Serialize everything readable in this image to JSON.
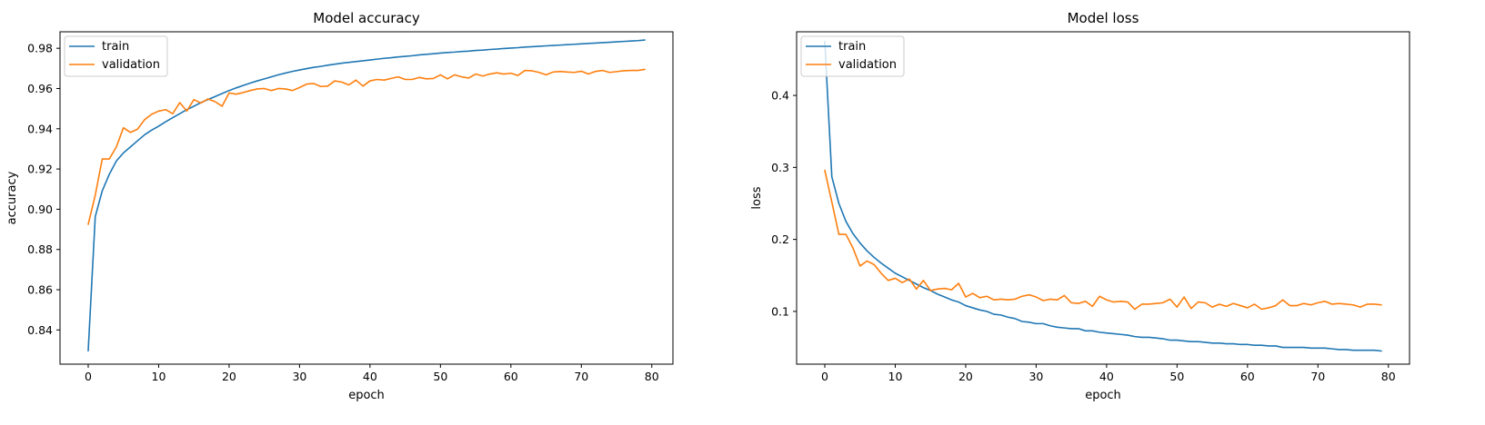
{
  "chart_data": [
    {
      "type": "line",
      "title": "Model accuracy",
      "xlabel": "epoch",
      "ylabel": "accuracy",
      "xlim": [
        -4,
        83
      ],
      "ylim": [
        0.823,
        0.9882
      ],
      "xticks": [
        0,
        10,
        20,
        30,
        40,
        50,
        60,
        70,
        80
      ],
      "yticks": [
        0.84,
        0.86,
        0.88,
        0.9,
        0.92,
        0.94,
        0.96,
        0.98
      ],
      "ytick_labels": [
        "0.84",
        "0.86",
        "0.88",
        "0.90",
        "0.92",
        "0.94",
        "0.96",
        "0.98"
      ],
      "legend": "upper-left",
      "grid": false,
      "series": [
        {
          "name": "train",
          "color": "#1f77b4",
          "values": [
            0.8296,
            0.8963,
            0.9092,
            0.9174,
            0.924,
            0.928,
            0.931,
            0.934,
            0.937,
            0.9393,
            0.9413,
            0.9435,
            0.9455,
            0.9475,
            0.9495,
            0.9512,
            0.953,
            0.9545,
            0.956,
            0.9575,
            0.959,
            0.9603,
            0.9615,
            0.9627,
            0.9638,
            0.9648,
            0.9658,
            0.9668,
            0.9677,
            0.9685,
            0.9692,
            0.9699,
            0.9705,
            0.971,
            0.9716,
            0.9721,
            0.9726,
            0.973,
            0.9734,
            0.9738,
            0.9742,
            0.9746,
            0.975,
            0.9753,
            0.9757,
            0.976,
            0.9763,
            0.9767,
            0.977,
            0.9773,
            0.9776,
            0.9779,
            0.9781,
            0.9784,
            0.9786,
            0.9789,
            0.9791,
            0.9794,
            0.9796,
            0.9799,
            0.9801,
            0.9803,
            0.9806,
            0.9808,
            0.981,
            0.9812,
            0.9814,
            0.9816,
            0.9818,
            0.982,
            0.9822,
            0.9824,
            0.9826,
            0.9828,
            0.983,
            0.9832,
            0.9834,
            0.9836,
            0.9838,
            0.9841
          ]
        },
        {
          "name": "validation",
          "color": "#ff7f0e",
          "values": [
            0.8925,
            0.907,
            0.925,
            0.925,
            0.931,
            0.9405,
            0.9382,
            0.9398,
            0.9445,
            0.9472,
            0.9488,
            0.9495,
            0.9475,
            0.953,
            0.9488,
            0.9545,
            0.9528,
            0.9548,
            0.9535,
            0.9512,
            0.9578,
            0.9572,
            0.958,
            0.959,
            0.9598,
            0.96,
            0.959,
            0.96,
            0.9598,
            0.959,
            0.9605,
            0.9622,
            0.9625,
            0.961,
            0.9612,
            0.9638,
            0.9632,
            0.9618,
            0.9642,
            0.9612,
            0.9638,
            0.9645,
            0.9642,
            0.965,
            0.9658,
            0.9645,
            0.9645,
            0.9655,
            0.9648,
            0.965,
            0.9668,
            0.9648,
            0.9668,
            0.9658,
            0.9652,
            0.9672,
            0.9662,
            0.9672,
            0.9678,
            0.9672,
            0.9676,
            0.9665,
            0.969,
            0.9688,
            0.968,
            0.9668,
            0.9682,
            0.9685,
            0.9682,
            0.968,
            0.9686,
            0.9672,
            0.9685,
            0.969,
            0.968,
            0.9684,
            0.9688,
            0.969,
            0.969,
            0.9695
          ]
        }
      ]
    },
    {
      "type": "line",
      "title": "Model loss",
      "xlabel": "epoch",
      "ylabel": "loss",
      "xlim": [
        -4,
        83
      ],
      "ylim": [
        0.0267,
        0.4884
      ],
      "xticks": [
        0,
        10,
        20,
        30,
        40,
        50,
        60,
        70,
        80
      ],
      "yticks": [
        0.1,
        0.2,
        0.3,
        0.4
      ],
      "ytick_labels": [
        "0.1",
        "0.2",
        "0.3",
        "0.4"
      ],
      "legend": "upper-left",
      "grid": false,
      "series": [
        {
          "name": "train",
          "color": "#1f77b4",
          "values": [
            0.475,
            0.287,
            0.25,
            0.225,
            0.208,
            0.195,
            0.184,
            0.175,
            0.167,
            0.16,
            0.153,
            0.148,
            0.143,
            0.138,
            0.133,
            0.129,
            0.124,
            0.12,
            0.116,
            0.113,
            0.108,
            0.105,
            0.102,
            0.1,
            0.096,
            0.095,
            0.092,
            0.09,
            0.086,
            0.085,
            0.083,
            0.083,
            0.08,
            0.078,
            0.077,
            0.076,
            0.076,
            0.073,
            0.073,
            0.071,
            0.07,
            0.069,
            0.068,
            0.067,
            0.065,
            0.064,
            0.064,
            0.063,
            0.062,
            0.06,
            0.06,
            0.059,
            0.058,
            0.058,
            0.057,
            0.056,
            0.056,
            0.055,
            0.055,
            0.054,
            0.054,
            0.053,
            0.053,
            0.052,
            0.052,
            0.05,
            0.05,
            0.05,
            0.05,
            0.049,
            0.049,
            0.049,
            0.048,
            0.047,
            0.047,
            0.046,
            0.046,
            0.046,
            0.046,
            0.045
          ]
        },
        {
          "name": "validation",
          "color": "#ff7f0e",
          "values": [
            0.296,
            0.252,
            0.207,
            0.207,
            0.188,
            0.163,
            0.17,
            0.165,
            0.153,
            0.143,
            0.146,
            0.14,
            0.145,
            0.131,
            0.143,
            0.129,
            0.131,
            0.132,
            0.13,
            0.139,
            0.12,
            0.125,
            0.119,
            0.121,
            0.116,
            0.117,
            0.116,
            0.117,
            0.121,
            0.123,
            0.12,
            0.115,
            0.117,
            0.116,
            0.122,
            0.112,
            0.111,
            0.114,
            0.107,
            0.121,
            0.116,
            0.113,
            0.114,
            0.113,
            0.103,
            0.11,
            0.11,
            0.111,
            0.112,
            0.117,
            0.106,
            0.12,
            0.104,
            0.113,
            0.112,
            0.106,
            0.11,
            0.107,
            0.111,
            0.108,
            0.105,
            0.11,
            0.103,
            0.105,
            0.108,
            0.116,
            0.108,
            0.108,
            0.111,
            0.109,
            0.112,
            0.114,
            0.11,
            0.111,
            0.11,
            0.109,
            0.106,
            0.11,
            0.11,
            0.109
          ]
        }
      ]
    }
  ]
}
